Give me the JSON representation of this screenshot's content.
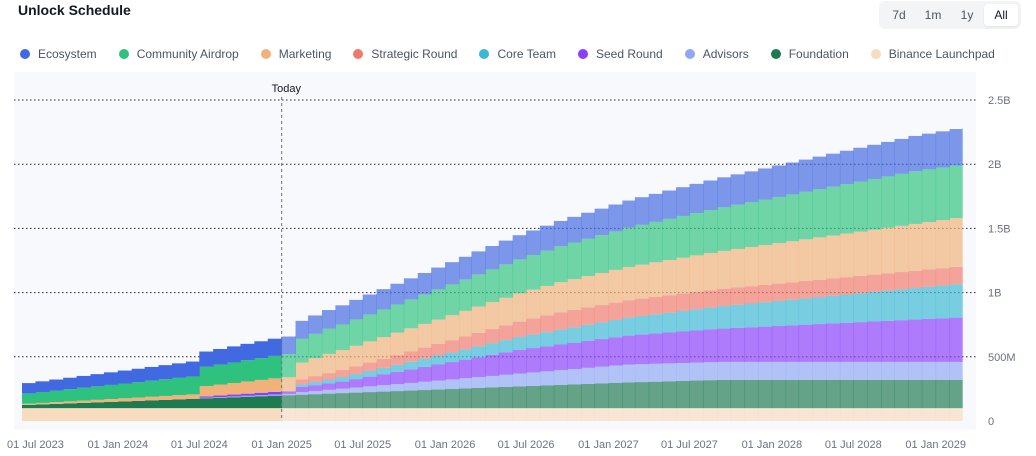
{
  "title": "Unlock Schedule",
  "ranges": [
    {
      "label": "7d",
      "active": false
    },
    {
      "label": "1m",
      "active": false
    },
    {
      "label": "1y",
      "active": false
    },
    {
      "label": "All",
      "active": true
    }
  ],
  "legend": [
    {
      "label": "Ecosystem",
      "color": "#4169e1"
    },
    {
      "label": "Community Airdrop",
      "color": "#2ec27e"
    },
    {
      "label": "Marketing",
      "color": "#f0b27a"
    },
    {
      "label": "Strategic Round",
      "color": "#f07a6a"
    },
    {
      "label": "Core Team",
      "color": "#3bb8d4"
    },
    {
      "label": "Seed Round",
      "color": "#8a3ffc"
    },
    {
      "label": "Advisors",
      "color": "#8fa8f5"
    },
    {
      "label": "Foundation",
      "color": "#1e7a50"
    },
    {
      "label": "Binance Launchpad",
      "color": "#f7dcc0"
    }
  ],
  "chart_data": {
    "type": "area",
    "title": "Unlock Schedule",
    "today_label": "Today",
    "today_date": "2025-01-01",
    "x": [
      "2023-06-01",
      "2023-07-01",
      "2023-08-01",
      "2023-09-01",
      "2023-10-01",
      "2023-11-01",
      "2023-12-01",
      "2024-01-01",
      "2024-02-01",
      "2024-03-01",
      "2024-04-01",
      "2024-05-01",
      "2024-06-01",
      "2024-07-01",
      "2024-08-01",
      "2024-09-01",
      "2024-10-01",
      "2024-11-01",
      "2024-12-01",
      "2025-01-01",
      "2025-02-01",
      "2025-03-01",
      "2025-04-01",
      "2025-05-01",
      "2025-06-01",
      "2025-07-01",
      "2025-08-01",
      "2025-09-01",
      "2025-10-01",
      "2025-11-01",
      "2025-12-01",
      "2026-01-01",
      "2026-02-01",
      "2026-03-01",
      "2026-04-01",
      "2026-05-01",
      "2026-06-01",
      "2026-07-01",
      "2026-08-01",
      "2026-09-01",
      "2026-10-01",
      "2026-11-01",
      "2026-12-01",
      "2027-01-01",
      "2027-02-01",
      "2027-03-01",
      "2027-04-01",
      "2027-05-01",
      "2027-06-01",
      "2027-07-01",
      "2027-08-01",
      "2027-09-01",
      "2027-10-01",
      "2027-11-01",
      "2027-12-01",
      "2028-01-01",
      "2028-02-01",
      "2028-03-01",
      "2028-04-01",
      "2028-05-01",
      "2028-06-01",
      "2028-07-01",
      "2028-08-01",
      "2028-09-01",
      "2028-10-01",
      "2028-11-01",
      "2028-12-01",
      "2029-01-01",
      "2029-02-01",
      "2029-03-01"
    ],
    "xticks": [
      "01 Jul 2023",
      "01 Jan 2024",
      "01 Jul 2024",
      "01 Jan 2025",
      "01 Jul 2025",
      "01 Jan 2026",
      "01 Jul 2026",
      "01 Jan 2027",
      "01 Jul 2027",
      "01 Jan 2028",
      "01 Jul 2028",
      "01 Jan 2029"
    ],
    "xtick_dates": [
      "2023-07-01",
      "2024-01-01",
      "2024-07-01",
      "2025-01-01",
      "2025-07-01",
      "2026-01-01",
      "2026-07-01",
      "2027-01-01",
      "2027-07-01",
      "2028-01-01",
      "2028-07-01",
      "2029-01-01"
    ],
    "x_range": [
      "2023-06-01",
      "2029-04-01"
    ],
    "yticks": [
      "0",
      "500M",
      "1B",
      "1.5B",
      "2B",
      "2.5B"
    ],
    "ytick_values": [
      0,
      500,
      1000,
      1500,
      2000,
      2500
    ],
    "ylim": [
      0,
      2500
    ],
    "y_unit": "M",
    "grid": true,
    "legend_position": "top",
    "series_order_bottom_to_top": [
      "Binance Launchpad",
      "Foundation",
      "Advisors",
      "Seed Round",
      "Core Team",
      "Strategic Round",
      "Marketing",
      "Community Airdrop",
      "Ecosystem"
    ],
    "series": [
      {
        "name": "Binance Launchpad",
        "color": "#f7dcc0",
        "values": [
          100,
          100,
          100,
          100,
          100,
          100,
          100,
          100,
          100,
          100,
          100,
          100,
          100,
          100,
          100,
          100,
          100,
          100,
          100,
          100,
          100,
          100,
          100,
          100,
          100,
          100,
          100,
          100,
          100,
          100,
          100,
          100,
          100,
          100,
          100,
          100,
          100,
          100,
          100,
          100,
          100,
          100,
          100,
          100,
          100,
          100,
          100,
          100,
          100,
          100,
          100,
          100,
          100,
          100,
          100,
          100,
          100,
          100,
          100,
          100,
          100,
          100,
          100,
          100,
          100,
          100,
          100,
          100,
          100,
          100
        ]
      },
      {
        "name": "Foundation",
        "color": "#1e7a50",
        "values": [
          25,
          29,
          33,
          37,
          41,
          45,
          49,
          53,
          57,
          61,
          65,
          69,
          73,
          77,
          81,
          85,
          89,
          93,
          97,
          101,
          105,
          109,
          113,
          117,
          121,
          125,
          129,
          133,
          137,
          141,
          145,
          149,
          153,
          157,
          161,
          165,
          169,
          173,
          177,
          181,
          185,
          189,
          193,
          197,
          200,
          203,
          206,
          209,
          212,
          215,
          218,
          220,
          220,
          220,
          220,
          220,
          220,
          220,
          220,
          220,
          220,
          220,
          220,
          220,
          220,
          220,
          220,
          220,
          220,
          220
        ]
      },
      {
        "name": "Advisors",
        "color": "#8fa8f5",
        "values": [
          0,
          0,
          0,
          0,
          0,
          0,
          0,
          0,
          0,
          0,
          0,
          0,
          0,
          5,
          6,
          7,
          8,
          9,
          10,
          10,
          20,
          25,
          30,
          35,
          40,
          45,
          50,
          55,
          60,
          65,
          70,
          75,
          80,
          85,
          90,
          95,
          100,
          105,
          110,
          115,
          120,
          125,
          130,
          135,
          140,
          140,
          140,
          140,
          140,
          140,
          140,
          140,
          140,
          140,
          140,
          140,
          140,
          140,
          140,
          140,
          140,
          140,
          140,
          140,
          140,
          140,
          140,
          140,
          140,
          140
        ]
      },
      {
        "name": "Seed Round",
        "color": "#8a3ffc",
        "values": [
          0,
          0,
          0,
          0,
          0,
          0,
          0,
          0,
          0,
          0,
          0,
          0,
          0,
          10,
          12,
          14,
          16,
          18,
          20,
          20,
          40,
          45,
          50,
          55,
          65,
          75,
          85,
          95,
          105,
          115,
          125,
          135,
          145,
          155,
          165,
          175,
          185,
          190,
          195,
          200,
          205,
          210,
          215,
          220,
          225,
          230,
          235,
          240,
          245,
          250,
          255,
          260,
          265,
          270,
          275,
          280,
          285,
          290,
          295,
          300,
          305,
          310,
          315,
          320,
          325,
          330,
          335,
          340,
          345,
          350
        ]
      },
      {
        "name": "Core Team",
        "color": "#3bb8d4",
        "values": [
          0,
          0,
          0,
          0,
          0,
          0,
          0,
          0,
          0,
          0,
          0,
          0,
          0,
          0,
          0,
          0,
          0,
          0,
          0,
          0,
          20,
          25,
          30,
          35,
          40,
          45,
          50,
          55,
          60,
          65,
          70,
          75,
          80,
          85,
          90,
          95,
          100,
          105,
          110,
          115,
          120,
          125,
          130,
          135,
          140,
          145,
          150,
          155,
          160,
          165,
          170,
          175,
          180,
          185,
          190,
          195,
          200,
          205,
          210,
          215,
          220,
          225,
          230,
          235,
          240,
          245,
          250,
          255,
          260,
          260
        ]
      },
      {
        "name": "Strategic Round",
        "color": "#f07a6a",
        "values": [
          0,
          0,
          0,
          0,
          0,
          0,
          0,
          0,
          0,
          0,
          0,
          0,
          0,
          0,
          0,
          0,
          0,
          0,
          0,
          0,
          40,
          45,
          50,
          55,
          60,
          65,
          70,
          75,
          80,
          85,
          90,
          95,
          100,
          105,
          110,
          115,
          120,
          125,
          130,
          135,
          135,
          135,
          135,
          135,
          135,
          135,
          135,
          135,
          135,
          135,
          135,
          135,
          135,
          135,
          135,
          135,
          135,
          135,
          135,
          135,
          135,
          135,
          135,
          135,
          135,
          135,
          135,
          135,
          135,
          135
        ]
      },
      {
        "name": "Marketing",
        "color": "#f0b27a",
        "values": [
          10,
          12,
          14,
          16,
          18,
          20,
          22,
          24,
          26,
          28,
          30,
          32,
          34,
          80,
          85,
          90,
          95,
          100,
          105,
          110,
          130,
          140,
          150,
          155,
          160,
          165,
          170,
          175,
          180,
          185,
          190,
          195,
          200,
          205,
          210,
          215,
          220,
          225,
          230,
          235,
          240,
          245,
          250,
          255,
          260,
          265,
          270,
          275,
          280,
          285,
          290,
          295,
          300,
          305,
          310,
          315,
          320,
          325,
          330,
          335,
          340,
          345,
          350,
          355,
          360,
          365,
          370,
          375,
          380,
          380
        ]
      },
      {
        "name": "Community Airdrop",
        "color": "#2ec27e",
        "values": [
          80,
          85,
          90,
          95,
          100,
          105,
          110,
          115,
          120,
          125,
          130,
          135,
          140,
          150,
          155,
          160,
          165,
          170,
          175,
          180,
          185,
          190,
          195,
          200,
          205,
          210,
          215,
          220,
          225,
          230,
          235,
          240,
          245,
          250,
          255,
          260,
          265,
          270,
          275,
          280,
          285,
          290,
          295,
          300,
          305,
          310,
          315,
          320,
          325,
          330,
          335,
          340,
          345,
          350,
          355,
          360,
          365,
          370,
          375,
          380,
          385,
          390,
          395,
          400,
          405,
          410,
          410,
          410,
          410,
          410
        ]
      },
      {
        "name": "Ecosystem",
        "color": "#4169e1",
        "values": [
          80,
          83,
          86,
          89,
          92,
          95,
          98,
          101,
          104,
          107,
          110,
          113,
          116,
          119,
          122,
          125,
          128,
          131,
          134,
          137,
          140,
          143,
          146,
          149,
          152,
          155,
          158,
          161,
          164,
          167,
          170,
          173,
          176,
          179,
          182,
          185,
          188,
          191,
          194,
          197,
          200,
          203,
          206,
          209,
          212,
          215,
          218,
          221,
          224,
          227,
          230,
          233,
          236,
          239,
          242,
          245,
          248,
          251,
          254,
          257,
          260,
          263,
          266,
          269,
          272,
          275,
          278,
          281,
          284,
          287
        ]
      }
    ]
  }
}
